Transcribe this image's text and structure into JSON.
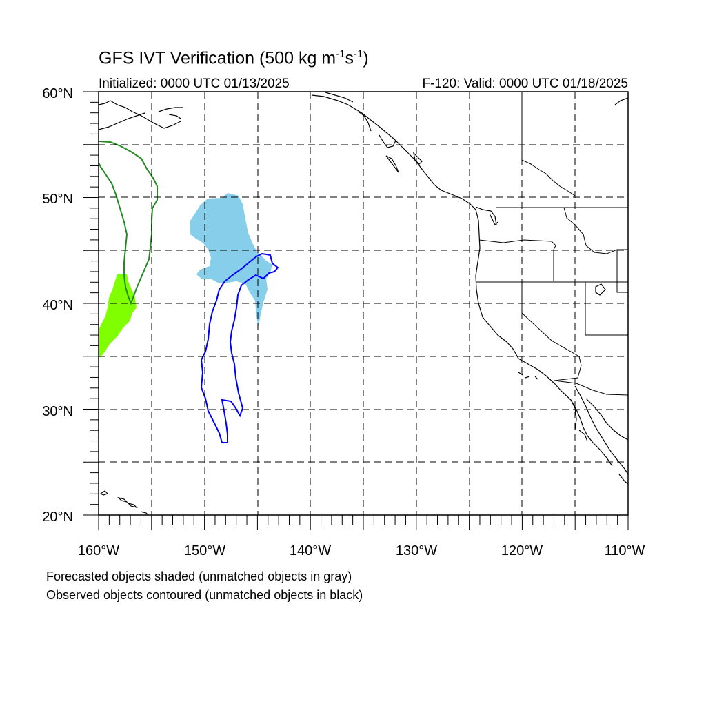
{
  "title": {
    "main": "GFS IVT Verification (500 kg m",
    "sup1": "-1",
    "mid": "s",
    "sup2": "-1",
    "end": ")"
  },
  "subtitle_left": "Initialized: 0000 UTC 01/13/2025",
  "subtitle_right": "F-120: Valid: 0000 UTC 01/18/2025",
  "lat_labels": [
    "60°N",
    "50°N",
    "40°N",
    "30°N",
    "20°N"
  ],
  "lon_labels": [
    "160°W",
    "150°W",
    "140°W",
    "130°W",
    "120°W",
    "110°W"
  ],
  "captions": {
    "forecast": "Forecasted objects shaded (unmatched objects in gray)",
    "observed": "Observed objects contoured (unmatched objects in black)"
  },
  "colors": {
    "forecast_object_1": "#87ceeb",
    "forecast_object_2": "#7fff00",
    "observed_object_1": "#0000ff",
    "observed_object_2": "#228b22",
    "coastline": "#000000"
  },
  "map": {
    "lon_range": [
      -160,
      -110
    ],
    "lat_range": [
      20,
      60
    ],
    "grid_spacing_deg": 5,
    "grid_style": "dashed"
  }
}
